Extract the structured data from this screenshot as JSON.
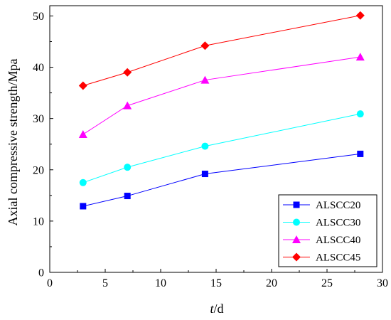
{
  "chart_data": {
    "type": "line",
    "xlabel": {
      "italic": "t",
      "rest": "/d"
    },
    "ylabel": "Axial compressive strength/Mpa",
    "xlim": [
      0,
      30
    ],
    "ylim": [
      0,
      52
    ],
    "xticks": [
      0,
      5,
      10,
      15,
      20,
      25,
      30
    ],
    "yticks": [
      0,
      10,
      20,
      30,
      40,
      50
    ],
    "grid": false,
    "legend_position": "bottom-right",
    "x": [
      3,
      7,
      14,
      28
    ],
    "series": [
      {
        "name": "ALSCC20",
        "values": [
          12.9,
          14.9,
          19.2,
          23.1
        ],
        "color": "#0000ff",
        "marker": "square"
      },
      {
        "name": "ALSCC30",
        "values": [
          17.5,
          20.5,
          24.6,
          30.9
        ],
        "color": "#00ffff",
        "marker": "circle"
      },
      {
        "name": "ALSCC40",
        "values": [
          26.9,
          32.5,
          37.5,
          42.0
        ],
        "color": "#ff00ff",
        "marker": "triangle"
      },
      {
        "name": "ALSCC45",
        "values": [
          36.4,
          39.0,
          44.2,
          50.1
        ],
        "color": "#ff0000",
        "marker": "diamond"
      }
    ]
  }
}
